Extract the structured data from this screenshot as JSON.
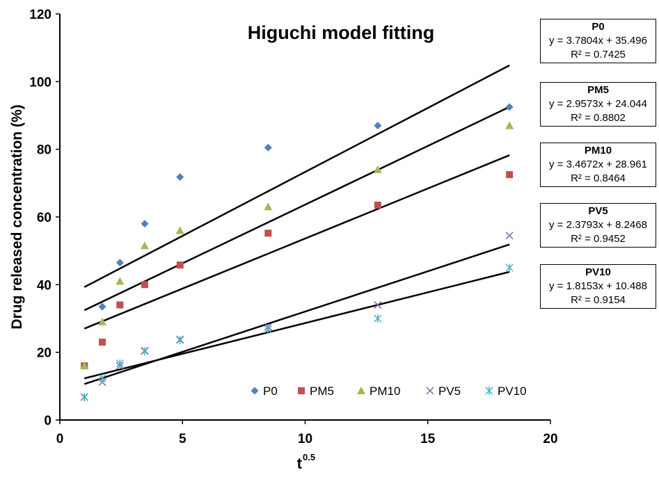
{
  "chart_data": {
    "type": "scatter",
    "title": "Higuchi model fitting",
    "xlabel": "t",
    "xlabel_superscript": "0.5",
    "ylabel": "Drug released concentration (%)",
    "xlim": [
      0,
      20
    ],
    "ylim": [
      0,
      120
    ],
    "xticks": [
      0,
      5,
      10,
      15,
      20
    ],
    "yticks": [
      0,
      20,
      40,
      60,
      80,
      100,
      120
    ],
    "xtick_labels": [
      "0",
      "5",
      "10",
      "15",
      "20"
    ],
    "ytick_labels": [
      "0",
      "20",
      "40",
      "60",
      "80",
      "100",
      "120"
    ],
    "grid": false,
    "legend_position": "bottom-right",
    "series": [
      {
        "name": "P0",
        "marker": "diamond",
        "color": "#4F81BD",
        "x": [
          1,
          1.73,
          2.45,
          3.46,
          4.9,
          8.49,
          12.96,
          18.33
        ],
        "y": [
          16,
          33.5,
          46.5,
          58,
          71.8,
          80.5,
          87,
          92.5
        ]
      },
      {
        "name": "PM5",
        "marker": "square",
        "color": "#C0504D",
        "x": [
          1,
          1.73,
          2.45,
          3.46,
          4.9,
          8.49,
          12.96,
          18.33
        ],
        "y": [
          16,
          23,
          34,
          40,
          45.8,
          55.2,
          63.5,
          72.5
        ]
      },
      {
        "name": "PM10",
        "marker": "triangle",
        "color": "#9BBB59",
        "x": [
          1,
          1.73,
          2.45,
          3.46,
          4.9,
          8.49,
          12.96,
          18.33
        ],
        "y": [
          16,
          29,
          41,
          51.5,
          56,
          63,
          74,
          87
        ]
      },
      {
        "name": "PV5",
        "marker": "x",
        "color": "#8064A2",
        "x": [
          1,
          1.73,
          2.45,
          3.46,
          4.9,
          8.49,
          12.96,
          18.33
        ],
        "y": [
          6.8,
          11.2,
          16,
          20.5,
          23.8,
          27.5,
          34,
          54.5
        ]
      },
      {
        "name": "PV10",
        "marker": "star",
        "color": "#4BACC6",
        "x": [
          1,
          1.73,
          2.45,
          3.46,
          4.9,
          8.49,
          12.96,
          18.33
        ],
        "y": [
          6.7,
          12.3,
          16.7,
          20.3,
          23.6,
          26.8,
          30,
          45
        ]
      }
    ],
    "trendlines": [
      {
        "series": "P0",
        "slope": 3.7804,
        "intercept": 35.496,
        "x_range": [
          1,
          18.33
        ],
        "equation": "y = 3.7804x + 35.496",
        "r2": "R² = 0.7425"
      },
      {
        "series": "PM5",
        "slope": 2.9573,
        "intercept": 24.044,
        "x_range": [
          1,
          18.33
        ],
        "equation": "y = 2.9573x + 24.044",
        "r2": "R² = 0.8802"
      },
      {
        "series": "PM10",
        "slope": 3.4672,
        "intercept": 28.961,
        "x_range": [
          1,
          18.33
        ],
        "equation": "y = 3.4672x + 28.961",
        "r2": "R² = 0.8464"
      },
      {
        "series": "PV5",
        "slope": 2.3793,
        "intercept": 8.2468,
        "x_range": [
          1,
          18.33
        ],
        "equation": "y = 2.3793x + 8.2468",
        "r2": "R² = 0.9452"
      },
      {
        "series": "PV10",
        "slope": 1.8153,
        "intercept": 10.488,
        "x_range": [
          1,
          18.33
        ],
        "equation": "y = 1.8153x + 10.488",
        "r2": "R² = 0.9154"
      }
    ],
    "trendline_color": "#000000"
  }
}
